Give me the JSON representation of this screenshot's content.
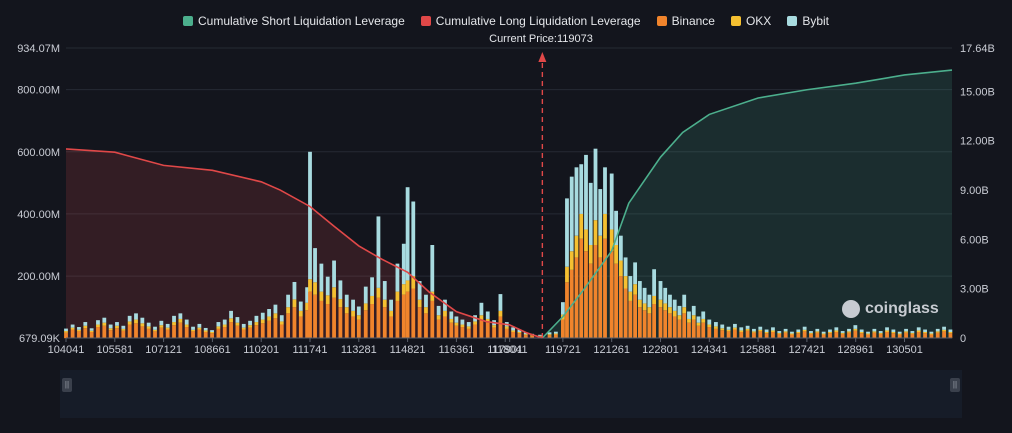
{
  "chart_data": {
    "type": "bar",
    "legend": [
      {
        "name": "Cumulative Short Liquidation Leverage",
        "color": "#4caf8d"
      },
      {
        "name": "Cumulative Long Liquidation Leverage",
        "color": "#e04848"
      },
      {
        "name": "Binance",
        "color": "#f0842c"
      },
      {
        "name": "OKX",
        "color": "#f5c031"
      },
      {
        "name": "Bybit",
        "color": "#a8dbe0"
      }
    ],
    "current_price_label": "Current Price:119073",
    "current_price": 119073,
    "x_ticks": [
      "104041",
      "105581",
      "107121",
      "108661",
      "110201",
      "111741",
      "113281",
      "114821",
      "116361",
      "117901",
      "118041",
      "119721",
      "121261",
      "122801",
      "124341",
      "125881",
      "127421",
      "128961",
      "130501"
    ],
    "y_left_ticks": [
      "679.09K",
      "200.00M",
      "400.00M",
      "600.00M",
      "800.00M",
      "934.07M"
    ],
    "y_right_ticks": [
      "0",
      "3.00B",
      "6.00B",
      "9.00B",
      "12.00B",
      "15.00B",
      "17.64B"
    ],
    "y_left_range": [
      0.67909,
      934.07
    ],
    "y_right_range": [
      0,
      17.64
    ],
    "long_cumulative_B": [
      [
        104041,
        11.5
      ],
      [
        105581,
        11.3
      ],
      [
        107121,
        10.5
      ],
      [
        108661,
        10.2
      ],
      [
        110201,
        9.5
      ],
      [
        110800,
        9.0
      ],
      [
        111741,
        8.0
      ],
      [
        112500,
        6.8
      ],
      [
        113281,
        5.6
      ],
      [
        114000,
        4.8
      ],
      [
        114821,
        4.0
      ],
      [
        115500,
        2.8
      ],
      [
        116361,
        1.6
      ],
      [
        117300,
        1.0
      ],
      [
        118041,
        0.8
      ],
      [
        118600,
        0.3
      ],
      [
        119073,
        0.0
      ]
    ],
    "short_cumulative_B": [
      [
        119073,
        0.0
      ],
      [
        119721,
        1.3
      ],
      [
        120400,
        3.0
      ],
      [
        121261,
        5.3
      ],
      [
        121800,
        8.2
      ],
      [
        122801,
        11.0
      ],
      [
        123500,
        12.5
      ],
      [
        124341,
        13.6
      ],
      [
        125881,
        14.6
      ],
      [
        127421,
        15.1
      ],
      [
        128961,
        15.5
      ],
      [
        130501,
        16.0
      ],
      [
        132000,
        16.3
      ]
    ],
    "bars_M": [
      [
        104041,
        18,
        5,
        8
      ],
      [
        104250,
        28,
        6,
        10
      ],
      [
        104450,
        22,
        5,
        9
      ],
      [
        104650,
        32,
        8,
        12
      ],
      [
        104850,
        20,
        4,
        8
      ],
      [
        105050,
        36,
        8,
        14
      ],
      [
        105250,
        40,
        10,
        16
      ],
      [
        105450,
        26,
        6,
        12
      ],
      [
        105650,
        32,
        8,
        12
      ],
      [
        105850,
        24,
        6,
        10
      ],
      [
        106050,
        44,
        10,
        18
      ],
      [
        106250,
        48,
        12,
        20
      ],
      [
        106450,
        38,
        10,
        18
      ],
      [
        106650,
        30,
        8,
        12
      ],
      [
        106850,
        22,
        5,
        10
      ],
      [
        107050,
        34,
        8,
        14
      ],
      [
        107250,
        28,
        6,
        12
      ],
      [
        107450,
        42,
        10,
        20
      ],
      [
        107650,
        50,
        12,
        18
      ],
      [
        107850,
        36,
        8,
        16
      ],
      [
        108050,
        22,
        5,
        10
      ],
      [
        108250,
        28,
        6,
        12
      ],
      [
        108450,
        20,
        5,
        8
      ],
      [
        108650,
        16,
        4,
        6
      ],
      [
        108850,
        30,
        8,
        14
      ],
      [
        109050,
        36,
        8,
        16
      ],
      [
        109250,
        52,
        12,
        24
      ],
      [
        109450,
        40,
        10,
        18
      ],
      [
        109650,
        28,
        6,
        12
      ],
      [
        109850,
        34,
        8,
        14
      ],
      [
        110050,
        42,
        10,
        20
      ],
      [
        110250,
        48,
        12,
        22
      ],
      [
        110450,
        56,
        14,
        24
      ],
      [
        110650,
        64,
        16,
        28
      ],
      [
        110850,
        44,
        10,
        20
      ],
      [
        111050,
        80,
        20,
        40
      ],
      [
        111250,
        100,
        25,
        56
      ],
      [
        111450,
        70,
        18,
        30
      ],
      [
        111650,
        90,
        24,
        50
      ],
      [
        111741,
        150,
        40,
        410
      ],
      [
        111900,
        140,
        40,
        110
      ],
      [
        112100,
        120,
        30,
        90
      ],
      [
        112300,
        110,
        28,
        60
      ],
      [
        112500,
        130,
        34,
        86
      ],
      [
        112700,
        100,
        26,
        60
      ],
      [
        112900,
        80,
        20,
        40
      ],
      [
        113100,
        70,
        18,
        36
      ],
      [
        113281,
        60,
        14,
        28
      ],
      [
        113500,
        90,
        22,
        54
      ],
      [
        113700,
        110,
        26,
        60
      ],
      [
        113900,
        130,
        32,
        230
      ],
      [
        114100,
        100,
        24,
        60
      ],
      [
        114300,
        70,
        18,
        36
      ],
      [
        114500,
        120,
        30,
        90
      ],
      [
        114700,
        140,
        34,
        130
      ],
      [
        114821,
        150,
        36,
        300
      ],
      [
        115000,
        160,
        40,
        240
      ],
      [
        115200,
        100,
        24,
        60
      ],
      [
        115400,
        80,
        20,
        40
      ],
      [
        115600,
        120,
        30,
        150
      ],
      [
        115800,
        60,
        14,
        30
      ],
      [
        116000,
        70,
        18,
        36
      ],
      [
        116200,
        50,
        12,
        24
      ],
      [
        116361,
        40,
        10,
        20
      ],
      [
        116550,
        36,
        8,
        16
      ],
      [
        116750,
        30,
        8,
        14
      ],
      [
        116950,
        44,
        10,
        20
      ],
      [
        117150,
        60,
        14,
        40
      ],
      [
        117350,
        50,
        12,
        24
      ],
      [
        117550,
        34,
        8,
        16
      ],
      [
        117750,
        70,
        18,
        54
      ],
      [
        117950,
        30,
        8,
        14
      ],
      [
        118150,
        20,
        5,
        10
      ],
      [
        118350,
        16,
        4,
        8
      ],
      [
        118550,
        10,
        3,
        6
      ],
      [
        118750,
        8,
        2,
        4
      ],
      [
        119000,
        6,
        2,
        3
      ],
      [
        119300,
        10,
        3,
        6
      ],
      [
        119500,
        12,
        3,
        6
      ],
      [
        119721,
        60,
        16,
        40
      ],
      [
        119850,
        180,
        50,
        220
      ],
      [
        120000,
        220,
        60,
        240
      ],
      [
        120150,
        260,
        70,
        220
      ],
      [
        120300,
        320,
        80,
        160
      ],
      [
        120450,
        280,
        70,
        240
      ],
      [
        120600,
        240,
        60,
        200
      ],
      [
        120750,
        300,
        80,
        230
      ],
      [
        120900,
        260,
        70,
        150
      ],
      [
        121050,
        320,
        80,
        150
      ],
      [
        121261,
        280,
        70,
        180
      ],
      [
        121400,
        240,
        60,
        110
      ],
      [
        121550,
        200,
        50,
        80
      ],
      [
        121700,
        160,
        40,
        60
      ],
      [
        121850,
        120,
        30,
        50
      ],
      [
        122000,
        140,
        34,
        70
      ],
      [
        122150,
        100,
        24,
        60
      ],
      [
        122300,
        90,
        22,
        50
      ],
      [
        122450,
        80,
        20,
        40
      ],
      [
        122600,
        110,
        26,
        86
      ],
      [
        122801,
        100,
        24,
        60
      ],
      [
        122950,
        90,
        22,
        50
      ],
      [
        123100,
        80,
        20,
        40
      ],
      [
        123250,
        70,
        18,
        36
      ],
      [
        123400,
        60,
        14,
        30
      ],
      [
        123550,
        80,
        20,
        40
      ],
      [
        123700,
        50,
        12,
        24
      ],
      [
        123850,
        60,
        14,
        30
      ],
      [
        124000,
        40,
        10,
        20
      ],
      [
        124150,
        50,
        12,
        24
      ],
      [
        124341,
        36,
        8,
        16
      ],
      [
        124550,
        30,
        8,
        14
      ],
      [
        124750,
        26,
        6,
        12
      ],
      [
        124950,
        22,
        5,
        10
      ],
      [
        125150,
        28,
        6,
        12
      ],
      [
        125350,
        20,
        5,
        10
      ],
      [
        125550,
        24,
        6,
        10
      ],
      [
        125750,
        18,
        4,
        8
      ],
      [
        125950,
        22,
        5,
        10
      ],
      [
        126150,
        16,
        4,
        8
      ],
      [
        126350,
        20,
        5,
        10
      ],
      [
        126550,
        14,
        3,
        6
      ],
      [
        126750,
        18,
        4,
        8
      ],
      [
        126950,
        12,
        3,
        6
      ],
      [
        127150,
        16,
        4,
        8
      ],
      [
        127350,
        22,
        5,
        10
      ],
      [
        127550,
        14,
        3,
        6
      ],
      [
        127750,
        18,
        4,
        8
      ],
      [
        127950,
        12,
        3,
        6
      ],
      [
        128150,
        16,
        4,
        8
      ],
      [
        128350,
        20,
        5,
        10
      ],
      [
        128550,
        14,
        3,
        6
      ],
      [
        128750,
        18,
        4,
        8
      ],
      [
        128950,
        24,
        6,
        12
      ],
      [
        129150,
        16,
        4,
        8
      ],
      [
        129350,
        12,
        3,
        6
      ],
      [
        129550,
        18,
        4,
        8
      ],
      [
        129750,
        14,
        3,
        6
      ],
      [
        129950,
        20,
        5,
        10
      ],
      [
        130150,
        16,
        4,
        8
      ],
      [
        130350,
        12,
        3,
        6
      ],
      [
        130550,
        18,
        4,
        8
      ],
      [
        130750,
        14,
        3,
        6
      ],
      [
        130950,
        20,
        5,
        10
      ],
      [
        131150,
        16,
        4,
        8
      ],
      [
        131350,
        12,
        3,
        6
      ],
      [
        131550,
        18,
        4,
        8
      ],
      [
        131750,
        22,
        5,
        10
      ],
      [
        131950,
        16,
        4,
        8
      ]
    ],
    "bars_fields": [
      "price",
      "binance_M",
      "okx_M",
      "bybit_M"
    ],
    "x_range": [
      104041,
      132000
    ]
  },
  "watermark_text": "coinglass",
  "scrollbar": {
    "left_handle": "||",
    "right_handle": "||"
  }
}
